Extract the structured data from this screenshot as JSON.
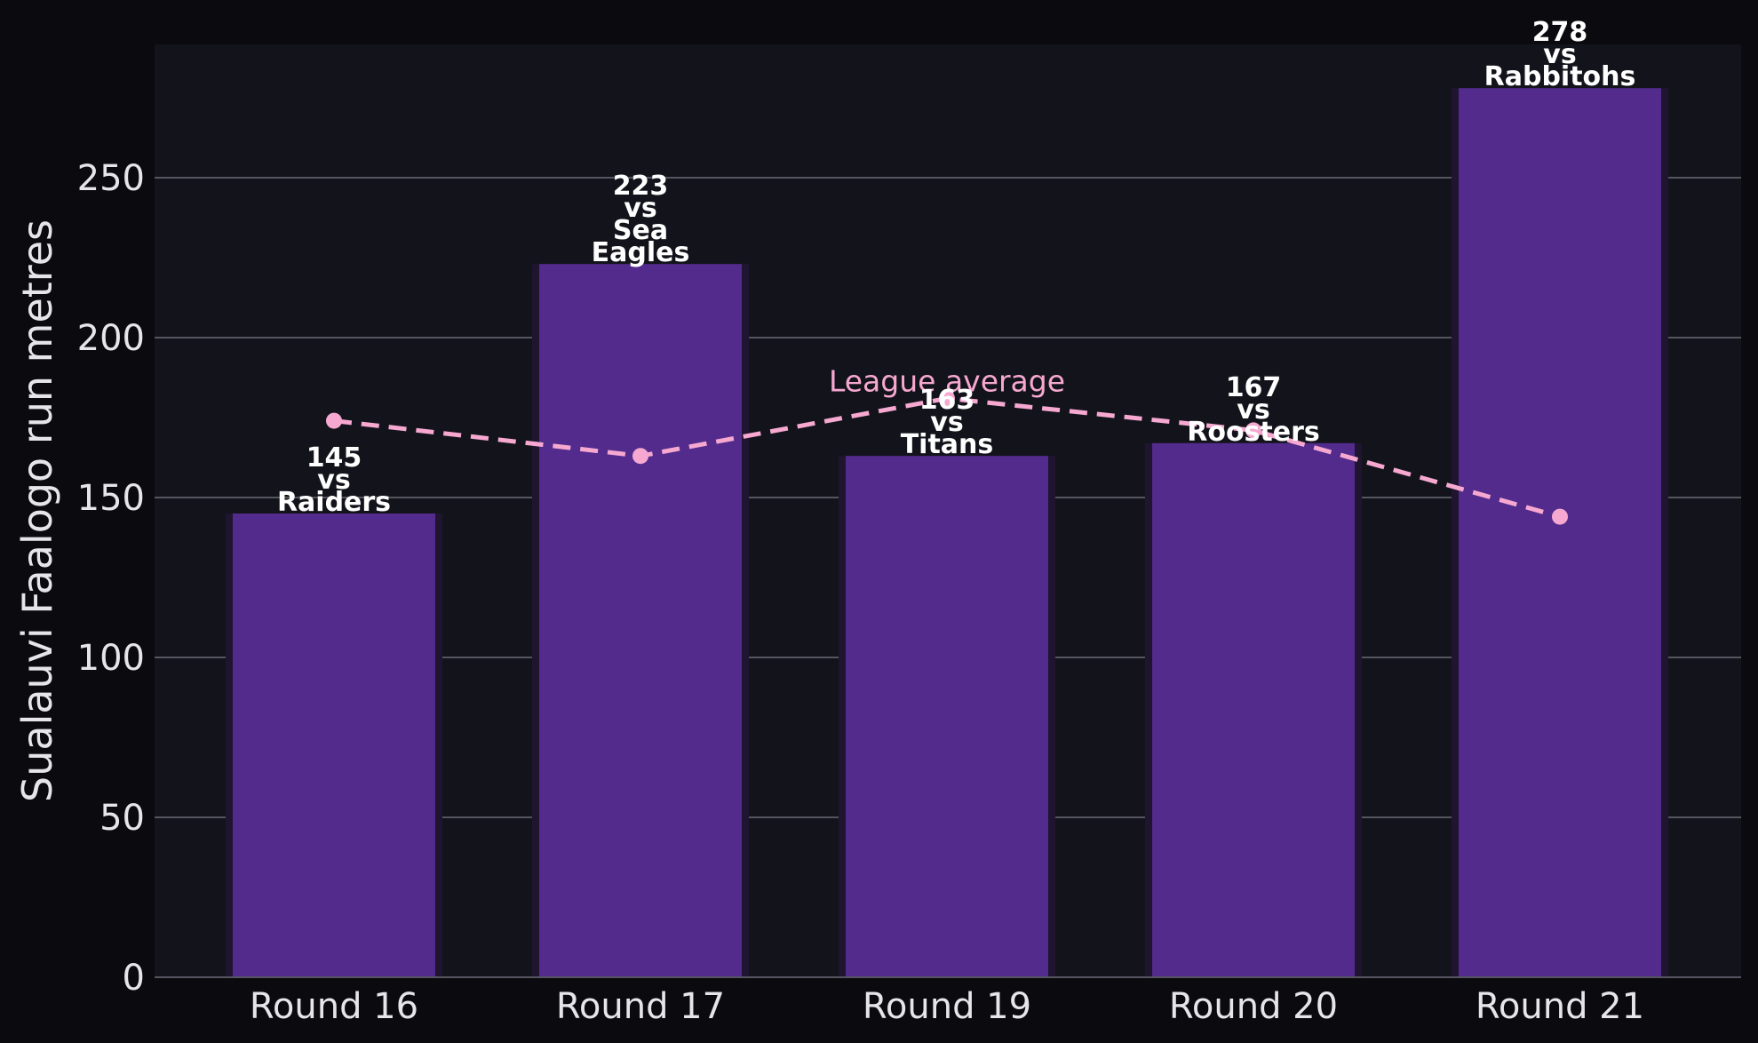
{
  "colors": {
    "background": "#0b0b0f",
    "plot_background": "#13131b",
    "bar": "#522b8c",
    "bar_shadow": "#1f1530",
    "gridline": "#555560",
    "average_line": "#f6a8d0"
  },
  "chart_data": {
    "type": "bar",
    "title": "",
    "xlabel": "",
    "ylabel": "Sualauvi Faalogo run metres",
    "ylim": [
      0,
      292
    ],
    "yticks": [
      0,
      50,
      100,
      150,
      200,
      250
    ],
    "grid": "horizontal",
    "categories": [
      "Round 16",
      "Round 17",
      "Round 19",
      "Round 20",
      "Round 21"
    ],
    "series": [
      {
        "values": [
          145,
          223,
          163,
          167,
          278
        ],
        "labels": [
          [
            "145",
            "vs",
            "Raiders"
          ],
          [
            "223",
            "vs",
            "Sea",
            "Eagles"
          ],
          [
            "163",
            "vs",
            "Titans"
          ],
          [
            "167",
            "vs",
            "Roosters"
          ],
          [
            "278",
            "vs",
            "Rabbitohs"
          ]
        ]
      },
      {
        "name": "League average",
        "type": "line",
        "style": "dashed",
        "values": [
          174,
          163,
          181,
          171,
          144
        ]
      }
    ]
  }
}
